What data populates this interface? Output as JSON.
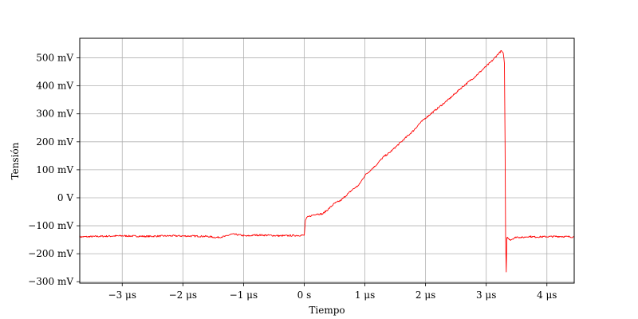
{
  "chart_data": {
    "type": "line",
    "title": "",
    "xlabel": "Tiempo",
    "ylabel": "Tensión",
    "xlim": [
      -3.7,
      4.45
    ],
    "ylim": [
      -305,
      570
    ],
    "grid": true,
    "legend": "none",
    "x_ticks": [
      {
        "value": -3,
        "label": "−3 μs"
      },
      {
        "value": -2,
        "label": "−2 μs"
      },
      {
        "value": -1,
        "label": "−1 μs"
      },
      {
        "value": 0,
        "label": "0 s"
      },
      {
        "value": 1,
        "label": "1 μs"
      },
      {
        "value": 2,
        "label": "2 μs"
      },
      {
        "value": 3,
        "label": "3 μs"
      },
      {
        "value": 4,
        "label": "4 μs"
      }
    ],
    "y_ticks": [
      {
        "value": -300,
        "label": "−300 mV"
      },
      {
        "value": -200,
        "label": "−200 mV"
      },
      {
        "value": -100,
        "label": "−100 mV"
      },
      {
        "value": 0,
        "label": "0 V"
      },
      {
        "value": 100,
        "label": "100 mV"
      },
      {
        "value": 200,
        "label": "200 mV"
      },
      {
        "value": 300,
        "label": "300 mV"
      },
      {
        "value": 400,
        "label": "400 mV"
      },
      {
        "value": 500,
        "label": "500 mV"
      }
    ],
    "series": [
      {
        "color": "#ff0000",
        "x": [
          -3.7,
          -3.4,
          -3.0,
          -2.6,
          -2.2,
          -1.8,
          -1.6,
          -1.45,
          -1.3,
          -1.2,
          -1.1,
          -0.95,
          -0.8,
          -0.6,
          -0.4,
          -0.2,
          0.0,
          0.01,
          0.02,
          0.05,
          0.1,
          0.2,
          0.3,
          0.4,
          0.5,
          0.6,
          0.7,
          0.8,
          0.9,
          1.0,
          1.1,
          1.2,
          1.3,
          1.4,
          1.5,
          1.6,
          1.7,
          1.8,
          1.9,
          2.0,
          2.2,
          2.4,
          2.6,
          2.8,
          3.0,
          3.1,
          3.2,
          3.25,
          3.28,
          3.3,
          3.31,
          3.32,
          3.33,
          3.34,
          3.36,
          3.4,
          3.5,
          3.6,
          3.7,
          3.8,
          4.0,
          4.2,
          4.45
        ],
        "y": [
          -140,
          -138,
          -136,
          -138,
          -136,
          -137,
          -138,
          -142,
          -138,
          -130,
          -132,
          -137,
          -133,
          -134,
          -136,
          -135,
          -134,
          -110,
          -80,
          -70,
          -65,
          -58,
          -58,
          -40,
          -20,
          -10,
          10,
          30,
          45,
          80,
          100,
          120,
          145,
          160,
          180,
          200,
          220,
          240,
          265,
          285,
          320,
          355,
          395,
          430,
          470,
          490,
          515,
          525,
          515,
          480,
          200,
          -150,
          -265,
          -140,
          -145,
          -150,
          -140,
          -142,
          -138,
          -140,
          -139,
          -138,
          -140
        ]
      }
    ]
  }
}
